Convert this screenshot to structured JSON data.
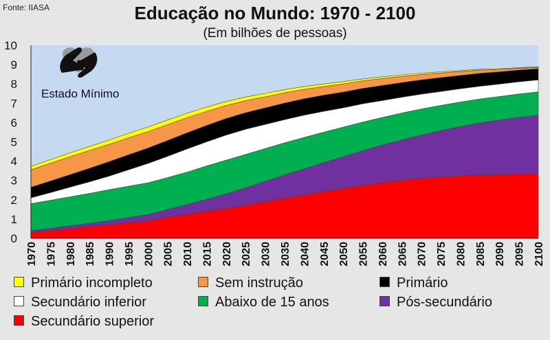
{
  "source": "Fonte: IIASA",
  "logo": {
    "name": "handshake-heart-icon",
    "text": "Estado Mínimo"
  },
  "chart_data": {
    "type": "area",
    "stacked": true,
    "title": "Educação no Mundo: 1970 - 2100",
    "subtitle": "(Em bilhões de pessoas)",
    "xlabel": "",
    "ylabel": "",
    "ylim": [
      0,
      10
    ],
    "yticks": [
      0,
      1,
      2,
      3,
      4,
      5,
      6,
      7,
      8,
      9,
      10
    ],
    "grid": false,
    "legend_position": "bottom",
    "x": [
      1970,
      1975,
      1980,
      1985,
      1990,
      1995,
      2000,
      2005,
      2010,
      2015,
      2020,
      2025,
      2030,
      2035,
      2040,
      2045,
      2050,
      2055,
      2060,
      2065,
      2070,
      2075,
      2080,
      2085,
      2090,
      2095,
      2100
    ],
    "series": [
      {
        "name": "Secundário superior",
        "color": "#ff0000",
        "values": [
          0.3,
          0.4,
          0.5,
          0.6,
          0.7,
          0.8,
          0.9,
          1.1,
          1.25,
          1.4,
          1.55,
          1.72,
          1.9,
          2.08,
          2.25,
          2.42,
          2.58,
          2.74,
          2.88,
          3.0,
          3.1,
          3.18,
          3.24,
          3.28,
          3.3,
          3.32,
          3.33
        ]
      },
      {
        "name": "Pós-secundário",
        "color": "#7030a0",
        "values": [
          0.1,
          0.12,
          0.15,
          0.18,
          0.22,
          0.27,
          0.33,
          0.4,
          0.5,
          0.62,
          0.75,
          0.9,
          1.05,
          1.2,
          1.35,
          1.5,
          1.65,
          1.8,
          1.95,
          2.1,
          2.25,
          2.4,
          2.55,
          2.7,
          2.83,
          2.95,
          3.05
        ]
      },
      {
        "name": "Abaixo de 15 anos",
        "color": "#00b050",
        "values": [
          1.4,
          1.45,
          1.5,
          1.55,
          1.6,
          1.63,
          1.65,
          1.65,
          1.68,
          1.73,
          1.75,
          1.73,
          1.7,
          1.67,
          1.63,
          1.58,
          1.53,
          1.48,
          1.43,
          1.39,
          1.35,
          1.31,
          1.27,
          1.24,
          1.22,
          1.21,
          1.21
        ]
      },
      {
        "name": "Secundário inferior",
        "color": "#ffffff",
        "values": [
          0.3,
          0.4,
          0.5,
          0.6,
          0.7,
          0.85,
          1.0,
          1.1,
          1.2,
          1.25,
          1.3,
          1.3,
          1.25,
          1.2,
          1.15,
          1.08,
          1.0,
          0.95,
          0.88,
          0.82,
          0.77,
          0.72,
          0.69,
          0.66,
          0.64,
          0.63,
          0.62
        ]
      },
      {
        "name": "Primário",
        "color": "#000000",
        "values": [
          0.55,
          0.6,
          0.65,
          0.7,
          0.75,
          0.78,
          0.8,
          0.82,
          0.84,
          0.85,
          0.86,
          0.86,
          0.86,
          0.86,
          0.85,
          0.84,
          0.82,
          0.8,
          0.78,
          0.76,
          0.74,
          0.72,
          0.69,
          0.67,
          0.64,
          0.61,
          0.58
        ]
      },
      {
        "name": "Sem instrução",
        "color": "#f79646",
        "values": [
          0.9,
          0.92,
          0.93,
          0.92,
          0.9,
          0.88,
          0.85,
          0.82,
          0.78,
          0.73,
          0.67,
          0.62,
          0.57,
          0.53,
          0.49,
          0.45,
          0.42,
          0.39,
          0.36,
          0.32,
          0.28,
          0.24,
          0.2,
          0.16,
          0.12,
          0.09,
          0.07
        ]
      },
      {
        "name": "Primário incompleto",
        "color": "#ffff00",
        "values": [
          0.18,
          0.19,
          0.2,
          0.21,
          0.22,
          0.23,
          0.24,
          0.24,
          0.23,
          0.22,
          0.21,
          0.19,
          0.18,
          0.16,
          0.15,
          0.13,
          0.12,
          0.1,
          0.09,
          0.08,
          0.07,
          0.06,
          0.05,
          0.05,
          0.04,
          0.03,
          0.03
        ]
      }
    ],
    "legend": [
      {
        "name": "Primário incompleto",
        "color": "#ffff00"
      },
      {
        "name": "Sem instrução",
        "color": "#f79646"
      },
      {
        "name": "Primário",
        "color": "#000000"
      },
      {
        "name": "Secundário inferior",
        "color": "#ffffff"
      },
      {
        "name": "Abaixo de 15 anos",
        "color": "#00b050"
      },
      {
        "name": "Pós-secundário",
        "color": "#7030a0"
      },
      {
        "name": "Secundário superior",
        "color": "#ff0000"
      }
    ],
    "plot_background": "#c5d9f1"
  }
}
